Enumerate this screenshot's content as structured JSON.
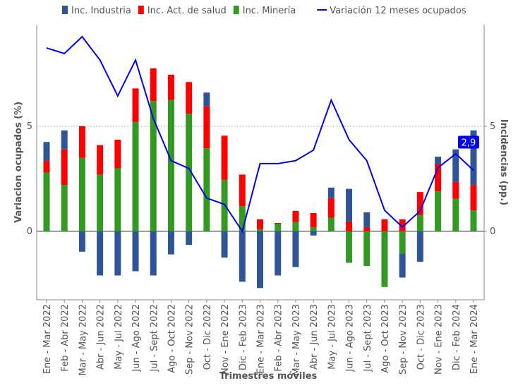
{
  "chart_data": {
    "type": "bar_line",
    "categories": [
      "Ene - Mar 2022",
      "Feb - Abr 2022",
      "Mar - May 2022",
      "Abr - Jun 2022",
      "May - Jul 2022",
      "Jun - Ago 2022",
      "Jul - Sept 2022",
      "Ago - Oct 2022",
      "Sep - Nov 2022",
      "Oct - Dic 2022",
      "Nov - Ene 2022",
      "Dic - Feb 2023",
      "Ene - Mar 2023",
      "Feb - Abr 2023",
      "Mar - May 2023",
      "Abr - Jun 2023",
      "May - Jul 2023",
      "Jun - Ago 2023",
      "Jul - Sept 2023",
      "Ago - Oct 2023",
      "Sep - Nov 2023",
      "Oct - Dic 2023",
      "Nov - Ene 2023",
      "Dic - Feb 2024",
      "Ene - Mar 2024"
    ],
    "series": [
      {
        "name": "Inc. Industria",
        "color": "#2f5597",
        "type": "bar",
        "values": [
          0.9,
          0.9,
          -0.97,
          -2.1,
          -2.1,
          -1.9,
          -2.1,
          -1.1,
          -0.65,
          0.65,
          -1.25,
          -2.4,
          -2.7,
          -2.1,
          -1.7,
          -0.2,
          0.5,
          1.55,
          0.7,
          0,
          -1.15,
          -1.45,
          0.35,
          1.55,
          2.6
        ]
      },
      {
        "name": "Inc. Act. de salud",
        "color": "#ff0000",
        "type": "bar",
        "values": [
          0.55,
          1.7,
          1.5,
          1.4,
          1.36,
          1.6,
          1.55,
          1.2,
          1.5,
          2.0,
          2.1,
          1.5,
          0.47,
          0.05,
          0.52,
          0.67,
          0.93,
          0.47,
          0.2,
          0.57,
          0.57,
          1.1,
          1.3,
          0.8,
          1.2
        ]
      },
      {
        "name": "Inc. Minería",
        "color": "#339922",
        "type": "bar",
        "values": [
          2.8,
          2.2,
          3.5,
          2.7,
          3.0,
          5.2,
          6.2,
          6.25,
          5.6,
          3.95,
          2.45,
          1.2,
          0.1,
          0.35,
          0.45,
          0.2,
          0.65,
          -1.5,
          -1.65,
          -2.65,
          -1.05,
          0.77,
          1.9,
          1.55,
          1.0
        ]
      },
      {
        "name": "Variación 12 meses ocupados",
        "color": "#0000ee",
        "type": "line",
        "axis": "y2",
        "values": [
          8.72,
          8.46,
          9.26,
          8.15,
          6.44,
          8.15,
          5.37,
          3.36,
          2.99,
          1.58,
          1.28,
          0,
          3.22,
          3.22,
          3.36,
          3.86,
          6.24,
          4.36,
          3.36,
          1.0,
          0.2,
          0.97,
          3.02,
          3.69,
          2.9
        ]
      }
    ],
    "annotation": "2,9",
    "ylabel": "Variacion ocupados (%)",
    "y2label": "Incidencias (pp.)",
    "xlabel": "Trimestres móviles",
    "ylim": [
      -3.26,
      9.83
    ],
    "yticks": [
      0,
      5
    ],
    "y2lim": [
      -3.26,
      9.83
    ],
    "y2ticks": [
      0,
      5
    ],
    "grid": true
  }
}
